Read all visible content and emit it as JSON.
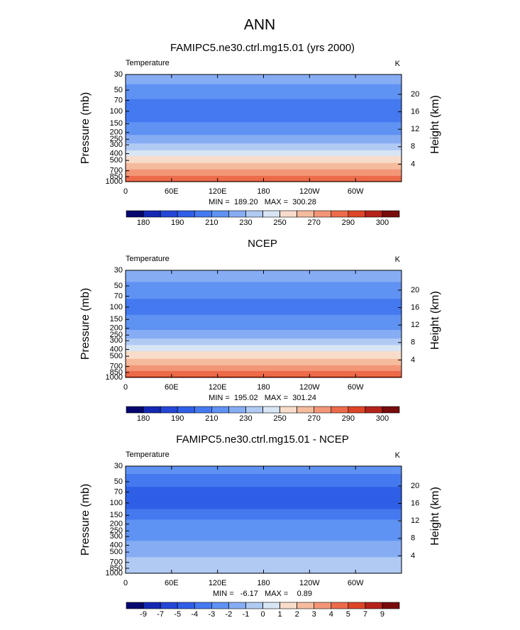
{
  "title": "ANN",
  "chart_data": [
    {
      "type": "contour",
      "title": "FAMIPC5.ne30.ctrl.mg15.01 (yrs 2000)",
      "left_label": "Temperature",
      "right_label": "K",
      "ylabel": "Pressure (mb)",
      "y2label": "Height (km)",
      "log_y": true,
      "ylim": [
        1000,
        30
      ],
      "yticks": [
        30,
        50,
        70,
        100,
        150,
        200,
        250,
        300,
        400,
        500,
        700,
        850,
        1000
      ],
      "y2ticks": [
        4,
        8,
        12,
        16,
        20
      ],
      "xlim": [
        0,
        360
      ],
      "xticks": [
        0,
        {
          "value": 60,
          "label": "60E"
        },
        {
          "value": 120,
          "label": "120E"
        },
        180,
        {
          "value": 240,
          "label": "120W"
        },
        {
          "value": 300,
          "label": "60W"
        }
      ],
      "stats": "MIN =  189.20   MAX =  300.28",
      "field": {
        "pressure": [
          30,
          50,
          70,
          100,
          150,
          200,
          250,
          300,
          400,
          500,
          700,
          850,
          1000
        ],
        "values": [
          226,
          216,
          209,
          204,
          211,
          217,
          224,
          232,
          246,
          256,
          272,
          281,
          292
        ]
      },
      "colorbar": {
        "levels": [
          180,
          {
            "value": 185
          },
          190,
          {
            "value": 200
          },
          210,
          {
            "value": 220
          },
          230,
          {
            "value": 240
          },
          250,
          {
            "value": 260
          },
          270,
          {
            "value": 280
          },
          290,
          {
            "value": 295
          },
          300
        ],
        "colors": [
          "#06066e",
          "#1428b4",
          "#2447d6",
          "#2f5fe6",
          "#4479f0",
          "#5f92f3",
          "#86adf4",
          "#b0caf4",
          "#d8e5f4",
          "#f8dccb",
          "#f5bb9d",
          "#f29677",
          "#ec6b4b",
          "#dd4527",
          "#b4231a",
          "#780c0c"
        ]
      }
    },
    {
      "type": "contour",
      "title": "NCEP",
      "left_label": "Temperature",
      "right_label": "K",
      "ylabel": "Pressure (mb)",
      "y2label": "Height (km)",
      "log_y": true,
      "ylim": [
        1000,
        30
      ],
      "yticks": [
        30,
        50,
        70,
        100,
        150,
        200,
        250,
        300,
        400,
        500,
        700,
        850,
        1000
      ],
      "y2ticks": [
        4,
        8,
        12,
        16,
        20
      ],
      "xlim": [
        0,
        360
      ],
      "xticks": [
        0,
        {
          "value": 60,
          "label": "60E"
        },
        {
          "value": 120,
          "label": "120E"
        },
        180,
        {
          "value": 240,
          "label": "120W"
        },
        {
          "value": 300,
          "label": "60W"
        }
      ],
      "stats": "MIN =  195.02   MAX =  301.24",
      "field": {
        "pressure": [
          30,
          50,
          70,
          100,
          150,
          200,
          250,
          300,
          400,
          500,
          700,
          850,
          1000
        ],
        "values": [
          227,
          218,
          211,
          206,
          212,
          218,
          225,
          233,
          247,
          257,
          273,
          282,
          293
        ]
      },
      "colorbar": {
        "levels": [
          180,
          {
            "value": 185
          },
          190,
          {
            "value": 200
          },
          210,
          {
            "value": 220
          },
          230,
          {
            "value": 240
          },
          250,
          {
            "value": 260
          },
          270,
          {
            "value": 280
          },
          290,
          {
            "value": 295
          },
          300
        ],
        "colors": [
          "#06066e",
          "#1428b4",
          "#2447d6",
          "#2f5fe6",
          "#4479f0",
          "#5f92f3",
          "#86adf4",
          "#b0caf4",
          "#d8e5f4",
          "#f8dccb",
          "#f5bb9d",
          "#f29677",
          "#ec6b4b",
          "#dd4527",
          "#b4231a",
          "#780c0c"
        ]
      }
    },
    {
      "type": "contour",
      "title": "FAMIPC5.ne30.ctrl.mg15.01 - NCEP",
      "left_label": "Temperature",
      "right_label": "K",
      "ylabel": "Pressure (mb)",
      "y2label": "Height (km)",
      "log_y": true,
      "ylim": [
        1000,
        30
      ],
      "yticks": [
        30,
        50,
        70,
        100,
        150,
        200,
        250,
        300,
        400,
        500,
        700,
        850,
        1000
      ],
      "y2ticks": [
        4,
        8,
        12,
        16,
        20
      ],
      "xlim": [
        0,
        360
      ],
      "xticks": [
        0,
        {
          "value": 60,
          "label": "60E"
        },
        {
          "value": 120,
          "label": "120E"
        },
        180,
        {
          "value": 240,
          "label": "120W"
        },
        {
          "value": 300,
          "label": "60W"
        }
      ],
      "stats": "MIN =   -6.17   MAX =    0.89",
      "field": {
        "pressure": [
          30,
          50,
          70,
          100,
          150,
          200,
          250,
          300,
          400,
          500,
          700,
          850,
          1000
        ],
        "values": [
          -2.5,
          -3.5,
          -4.5,
          -4.5,
          -3.5,
          -2.5,
          -2.5,
          -2.5,
          -1.5,
          -1.5,
          -0.5,
          -0.5,
          -0.5
        ]
      },
      "colorbar": {
        "levels": [
          -9,
          -7,
          -5,
          -4,
          -3,
          -2,
          -1,
          0,
          1,
          2,
          3,
          4,
          5,
          7,
          9
        ],
        "colors": [
          "#06066e",
          "#1428b4",
          "#2447d6",
          "#2f5fe6",
          "#4479f0",
          "#5f92f3",
          "#86adf4",
          "#b0caf4",
          "#d8e5f4",
          "#f8dccb",
          "#f5bb9d",
          "#f29677",
          "#ec6b4b",
          "#dd4527",
          "#b4231a",
          "#780c0c"
        ]
      }
    }
  ]
}
